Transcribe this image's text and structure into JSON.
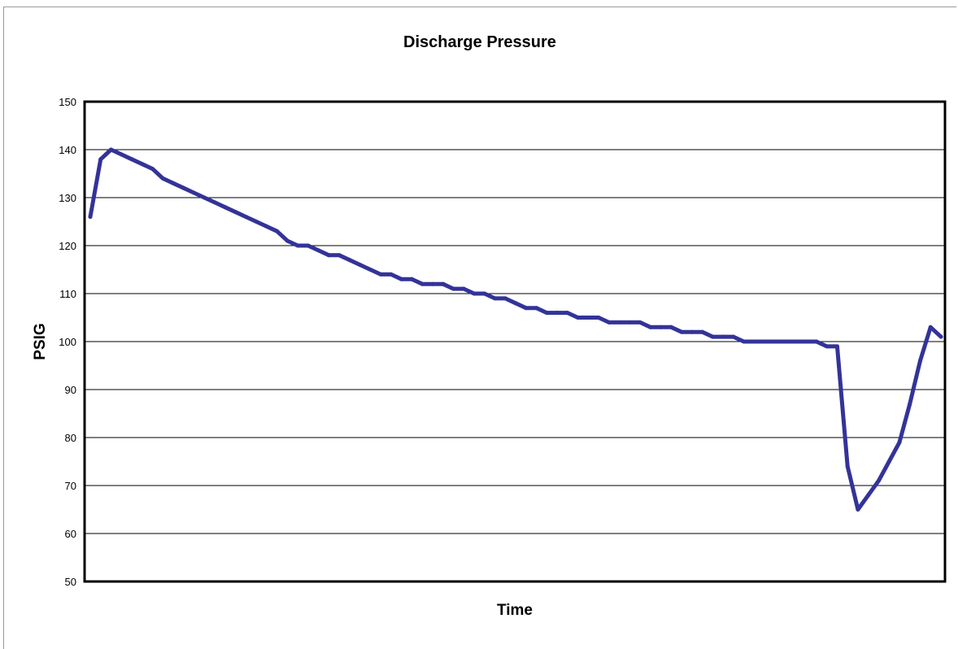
{
  "chart_data": {
    "type": "line",
    "title": "Discharge Pressure",
    "xlabel": "Time",
    "ylabel": "PSIG",
    "ylim": [
      50,
      150
    ],
    "yticks": [
      50,
      60,
      70,
      80,
      90,
      100,
      110,
      120,
      130,
      140,
      150
    ],
    "grid": "horizontal",
    "legend": "none",
    "line_color": "#333399",
    "series": [
      {
        "values": [
          126,
          138,
          140,
          139,
          138,
          137,
          136,
          134,
          133,
          132,
          131,
          130,
          129,
          128,
          127,
          126,
          125,
          124,
          123,
          121,
          120,
          120,
          119,
          118,
          118,
          117,
          116,
          115,
          114,
          114,
          113,
          113,
          112,
          112,
          112,
          111,
          111,
          110,
          110,
          109,
          109,
          108,
          107,
          107,
          106,
          106,
          106,
          105,
          105,
          105,
          104,
          104,
          104,
          104,
          103,
          103,
          103,
          102,
          102,
          102,
          101,
          101,
          101,
          100,
          100,
          100,
          100,
          100,
          100,
          100,
          100,
          99,
          99,
          74,
          65,
          68,
          71,
          75,
          79,
          87,
          96,
          103,
          101
        ]
      }
    ]
  }
}
